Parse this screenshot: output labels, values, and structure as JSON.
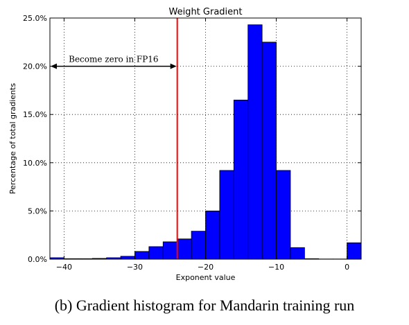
{
  "chart_data": {
    "type": "bar",
    "title": "Weight Gradient",
    "xlabel": "Exponent value",
    "ylabel": "Percentage of total gradients",
    "xlim": [
      -42,
      2
    ],
    "ylim": [
      0,
      25
    ],
    "xticks": [
      -40,
      -30,
      -20,
      -10,
      0
    ],
    "xtick_labels": [
      "−40",
      "−30",
      "−20",
      "−10",
      "0"
    ],
    "yticks": [
      0,
      5,
      10,
      15,
      20,
      25
    ],
    "ytick_labels": [
      "0.0%",
      "5.0%",
      "10.0%",
      "15.0%",
      "20.0%",
      "25.0%"
    ],
    "grid": true,
    "bar_color": "#0000ff",
    "bin_width": 2,
    "bins": [
      {
        "x0": -42,
        "value": 0.15
      },
      {
        "x0": -40,
        "value": 0.05
      },
      {
        "x0": -38,
        "value": 0.05
      },
      {
        "x0": -36,
        "value": 0.08
      },
      {
        "x0": -34,
        "value": 0.15
      },
      {
        "x0": -32,
        "value": 0.3
      },
      {
        "x0": -30,
        "value": 0.8
      },
      {
        "x0": -28,
        "value": 1.3
      },
      {
        "x0": -26,
        "value": 1.8
      },
      {
        "x0": -24,
        "value": 2.1
      },
      {
        "x0": -22,
        "value": 2.9
      },
      {
        "x0": -20,
        "value": 5.0
      },
      {
        "x0": -18,
        "value": 9.2
      },
      {
        "x0": -16,
        "value": 16.5
      },
      {
        "x0": -14,
        "value": 24.3
      },
      {
        "x0": -12,
        "value": 22.5
      },
      {
        "x0": -10,
        "value": 9.2
      },
      {
        "x0": -8,
        "value": 1.2
      },
      {
        "x0": -6,
        "value": 0.05
      },
      {
        "x0": -4,
        "value": 0.02
      },
      {
        "x0": -2,
        "value": 0.02
      },
      {
        "x0": 0,
        "value": 1.7
      }
    ],
    "threshold": {
      "x": -24,
      "color": "#ff0000"
    },
    "annotation": {
      "text": "Become zero in FP16",
      "y": 20,
      "x_from": -42,
      "x_to": -24
    }
  },
  "caption": "(b) Gradient histogram for Mandarin training run"
}
